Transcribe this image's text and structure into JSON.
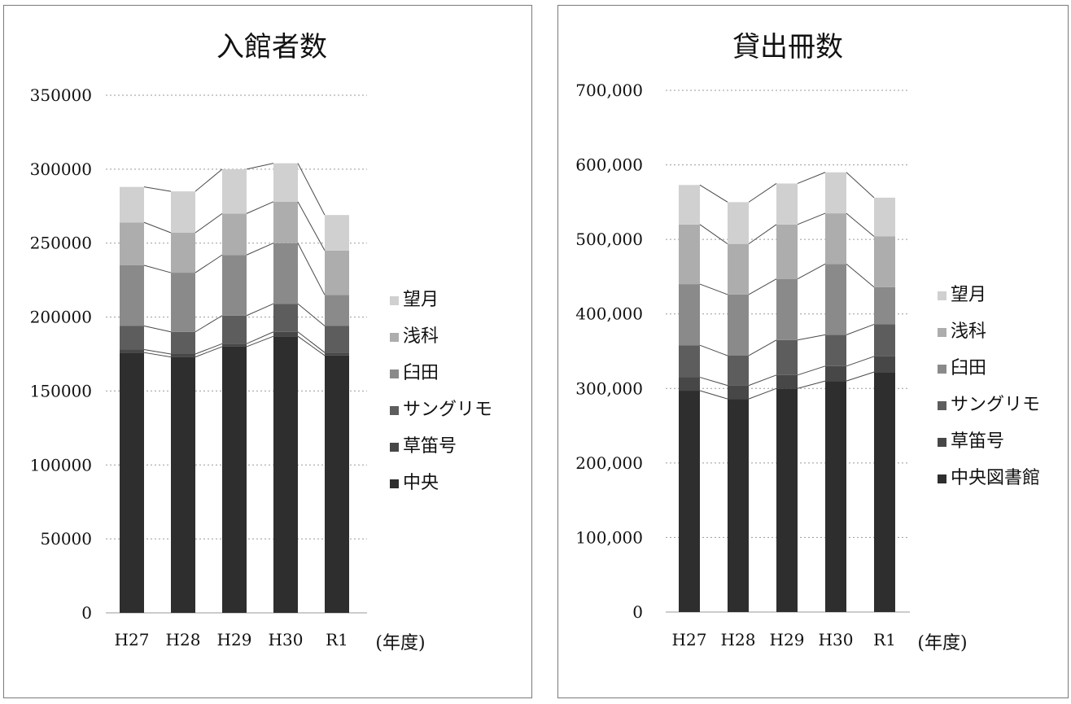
{
  "chart_data": [
    {
      "type": "bar",
      "stacked": true,
      "title": "入館者数",
      "xlabel": "(年度)",
      "ylabel": "",
      "categories": [
        "H27",
        "H28",
        "H29",
        "H30",
        "R1"
      ],
      "ylim": [
        0,
        350000
      ],
      "yticks": [
        0,
        50000,
        100000,
        150000,
        200000,
        250000,
        300000,
        350000
      ],
      "ytick_labels": [
        "0",
        "50000",
        "100000",
        "150000",
        "200000",
        "250000",
        "300000",
        "350000"
      ],
      "grid": true,
      "legend_position": "right",
      "series_lines": true,
      "series": [
        {
          "name": "中央",
          "values": [
            176000,
            173000,
            180000,
            187000,
            174000
          ]
        },
        {
          "name": "草笛号",
          "values": [
            2000,
            2000,
            2000,
            3000,
            2000
          ]
        },
        {
          "name": "サングリモ",
          "values": [
            16000,
            15000,
            19000,
            19000,
            18000
          ]
        },
        {
          "name": "臼田",
          "values": [
            41000,
            40000,
            41000,
            41000,
            21000
          ]
        },
        {
          "name": "浅科",
          "values": [
            29000,
            27000,
            28000,
            28000,
            30000
          ]
        },
        {
          "name": "望月",
          "values": [
            24000,
            28000,
            30000,
            26000,
            24000
          ]
        }
      ]
    },
    {
      "type": "bar",
      "stacked": true,
      "title": "貸出冊数",
      "xlabel": "(年度)",
      "ylabel": "",
      "categories": [
        "H27",
        "H28",
        "H29",
        "H30",
        "R1"
      ],
      "ylim": [
        0,
        700000
      ],
      "yticks": [
        0,
        100000,
        200000,
        300000,
        400000,
        500000,
        600000,
        700000
      ],
      "ytick_labels": [
        "0",
        "100,000",
        "200,000",
        "300,000",
        "400,000",
        "500,000",
        "600,000",
        "700,000"
      ],
      "grid": true,
      "legend_position": "right",
      "series_lines": true,
      "series": [
        {
          "name": "中央図書館",
          "values": [
            297000,
            286000,
            300000,
            310000,
            322000
          ]
        },
        {
          "name": "草笛号",
          "values": [
            18000,
            18000,
            18000,
            20000,
            21000
          ]
        },
        {
          "name": "サングリモ",
          "values": [
            43000,
            40000,
            47000,
            42000,
            43000
          ]
        },
        {
          "name": "臼田",
          "values": [
            82000,
            82000,
            82000,
            95000,
            50000
          ]
        },
        {
          "name": "浅科",
          "values": [
            80000,
            68000,
            73000,
            68000,
            68000
          ]
        },
        {
          "name": "望月",
          "values": [
            53000,
            56000,
            55000,
            55000,
            52000
          ]
        }
      ]
    }
  ],
  "colors": [
    "#2e2e2e",
    "#474747",
    "#5d5d5d",
    "#8a8a8a",
    "#adadad",
    "#d0d0d0"
  ]
}
